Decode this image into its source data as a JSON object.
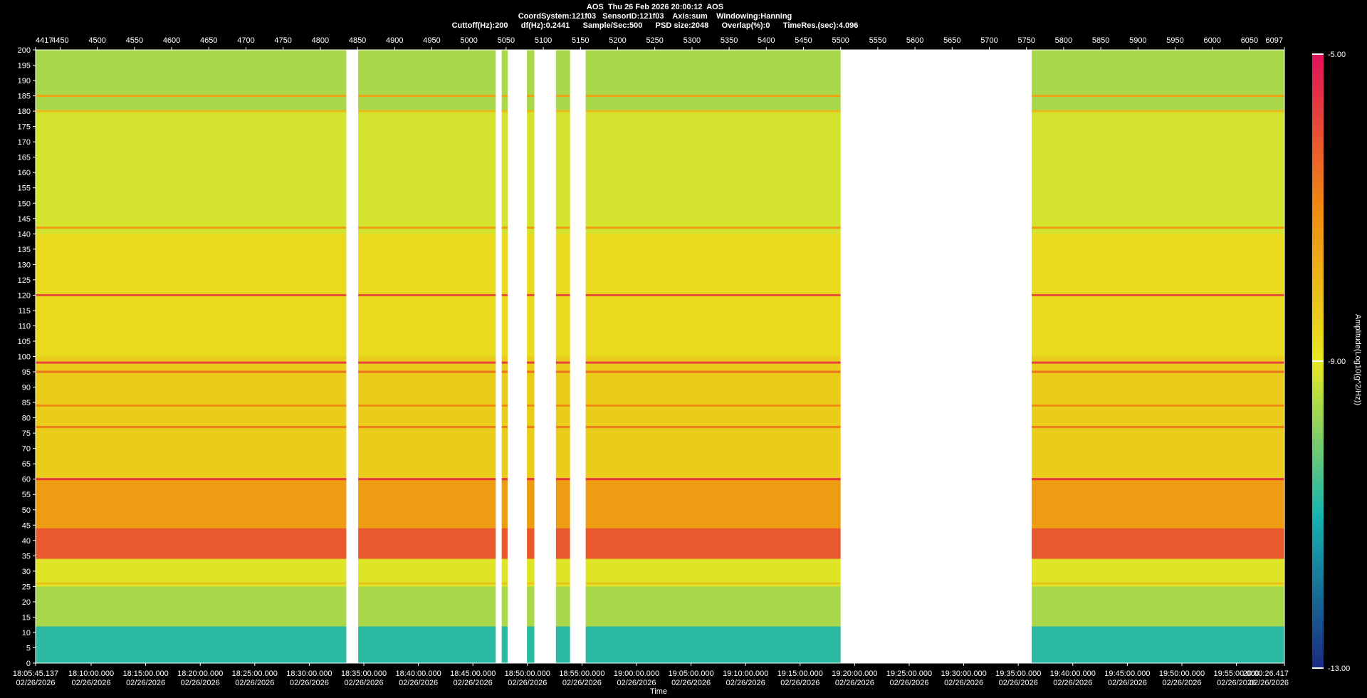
{
  "header": {
    "line1": "AOS  Thu 26 Feb 2026 20:00:12  AOS",
    "line2": "CoordSystem:121f03   SensorID:121f03    Axis:sum    Windowing:Hanning",
    "line3": "Cuttoff(Hz):200      df(Hz):0.2441      Sample/Sec:500      PSD size:2048      Overlap(%):0      TimeRes.(sec):4.096"
  },
  "colors": {
    "background": "#000000",
    "gap": "#ffffff",
    "colormap_low": "#1a2a80",
    "colormap_mid": "#e8e820",
    "colormap_high": "#e0105a"
  },
  "chart_data": {
    "type": "heatmap",
    "title": "",
    "xlabel": "Time",
    "ylabel": "",
    "colorbar_label": "Amplitude(Log10(g^2/Hz))",
    "colorbar_ticks": [
      "-5.00",
      "-9.00",
      "-13.00"
    ],
    "colorbar_range": [
      -13,
      -5
    ],
    "ylim": [
      0,
      200
    ],
    "y_ticks": [
      "200",
      "195",
      "190",
      "185",
      "180",
      "175",
      "170",
      "165",
      "160",
      "155",
      "150",
      "145",
      "140",
      "135",
      "130",
      "125",
      "120",
      "115",
      "110",
      "105",
      "100",
      "95",
      "90",
      "85",
      "80",
      "75",
      "70",
      "65",
      "60",
      "55",
      "50",
      "45",
      "40",
      "35",
      "30",
      "25",
      "20",
      "15",
      "10",
      "5",
      "0"
    ],
    "frame_range": [
      4417,
      6097
    ],
    "top_ticks": [
      "4417",
      "4450",
      "4500",
      "4550",
      "4600",
      "4650",
      "4700",
      "4750",
      "4800",
      "4850",
      "4900",
      "4950",
      "5000",
      "5050",
      "5100",
      "5150",
      "5200",
      "5250",
      "5300",
      "5350",
      "5400",
      "5450",
      "5500",
      "5550",
      "5600",
      "5650",
      "5700",
      "5750",
      "5800",
      "5850",
      "5900",
      "5950",
      "6000",
      "6050",
      "6097"
    ],
    "time_ticks": [
      {
        "time": "18:05:45.137",
        "date": "02/26/2026"
      },
      {
        "time": "18:10:00.000",
        "date": "02/26/2026"
      },
      {
        "time": "18:15:00.000",
        "date": "02/26/2026"
      },
      {
        "time": "18:20:00.000",
        "date": "02/26/2026"
      },
      {
        "time": "18:25:00.000",
        "date": "02/26/2026"
      },
      {
        "time": "18:30:00.000",
        "date": "02/26/2026"
      },
      {
        "time": "18:35:00.000",
        "date": "02/26/2026"
      },
      {
        "time": "18:40:00.000",
        "date": "02/26/2026"
      },
      {
        "time": "18:45:00.000",
        "date": "02/26/2026"
      },
      {
        "time": "18:50:00.000",
        "date": "02/26/2026"
      },
      {
        "time": "18:55:00.000",
        "date": "02/26/2026"
      },
      {
        "time": "19:00:00.000",
        "date": "02/26/2026"
      },
      {
        "time": "19:05:00.000",
        "date": "02/26/2026"
      },
      {
        "time": "19:10:00.000",
        "date": "02/26/2026"
      },
      {
        "time": "19:15:00.000",
        "date": "02/26/2026"
      },
      {
        "time": "19:20:00.000",
        "date": "02/26/2026"
      },
      {
        "time": "19:25:00.000",
        "date": "02/26/2026"
      },
      {
        "time": "19:30:00.000",
        "date": "02/26/2026"
      },
      {
        "time": "19:35:00.000",
        "date": "02/26/2026"
      },
      {
        "time": "19:40:00.000",
        "date": "02/26/2026"
      },
      {
        "time": "19:45:00.000",
        "date": "02/26/2026"
      },
      {
        "time": "19:50:00.000",
        "date": "02/26/2026"
      },
      {
        "time": "19:55:00.000",
        "date": "02/26/2026"
      },
      {
        "time": "20:00:26.417",
        "date": "02/26/2026"
      }
    ],
    "frequency_bands": [
      {
        "lo": 0,
        "hi": 12,
        "level": -10.8
      },
      {
        "lo": 12,
        "hi": 25,
        "level": -9.6
      },
      {
        "lo": 25,
        "hi": 34,
        "level": -9.1
      },
      {
        "lo": 34,
        "hi": 44,
        "level": -6.2
      },
      {
        "lo": 44,
        "hi": 60,
        "level": -7.4
      },
      {
        "lo": 60,
        "hi": 100,
        "level": -8.4
      },
      {
        "lo": 100,
        "hi": 140,
        "level": -8.7
      },
      {
        "lo": 140,
        "hi": 180,
        "level": -9.2
      },
      {
        "lo": 180,
        "hi": 200,
        "level": -9.6
      }
    ],
    "lines_hz": [
      {
        "hz": 120,
        "level": -6.0
      },
      {
        "hz": 98,
        "level": -5.8
      },
      {
        "hz": 95,
        "level": -6.6
      },
      {
        "hz": 84,
        "level": -7.0
      },
      {
        "hz": 77,
        "level": -6.8
      },
      {
        "hz": 60,
        "level": -5.6
      },
      {
        "hz": 142,
        "level": -7.4
      },
      {
        "hz": 185,
        "level": -7.6
      },
      {
        "hz": 180,
        "level": -8.0
      },
      {
        "hz": 26,
        "level": -8.2
      }
    ],
    "gaps_frames": [
      [
        4835,
        4851
      ],
      [
        5036,
        5044
      ],
      [
        5052,
        5078
      ],
      [
        5088,
        5117
      ],
      [
        5136,
        5157
      ],
      [
        5500,
        5757
      ]
    ]
  }
}
